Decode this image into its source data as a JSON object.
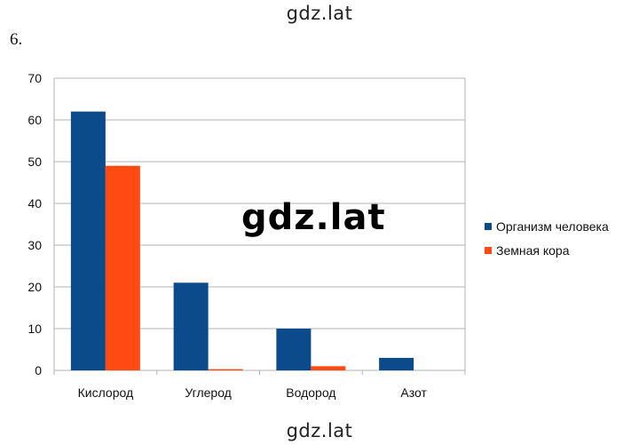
{
  "watermark": "gdz.lat",
  "problem_number": "6.",
  "chart_data": {
    "type": "bar",
    "categories": [
      "Кислород",
      "Углерод",
      "Водород",
      "Азот"
    ],
    "series": [
      {
        "name": "Организм человека",
        "values": [
          62,
          21,
          10,
          3
        ],
        "color": "#0b4a8b"
      },
      {
        "name": "Земная кора",
        "values": [
          49,
          0.3,
          1,
          0
        ],
        "color": "#ff4a12"
      }
    ],
    "ylim": [
      0,
      70
    ],
    "yticks": [
      0,
      10,
      20,
      30,
      40,
      50,
      60,
      70
    ],
    "grid": true,
    "legend_position": "right"
  }
}
